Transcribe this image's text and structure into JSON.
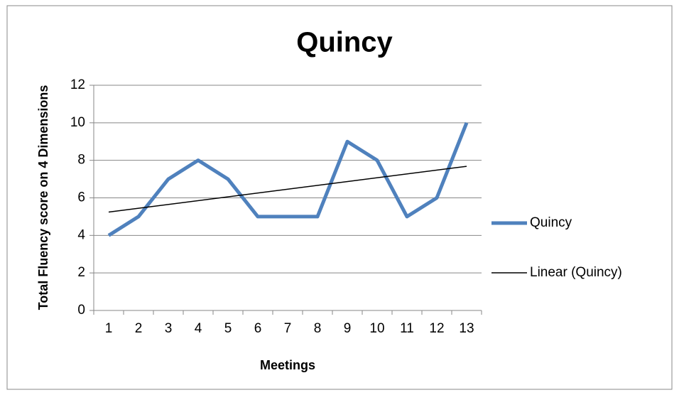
{
  "chart_data": {
    "type": "line",
    "title": "Quincy",
    "x_label": "Meetings",
    "y_label": "Total Fluency score on 4 Dimensions",
    "categories": [
      "1",
      "2",
      "3",
      "4",
      "5",
      "6",
      "7",
      "8",
      "9",
      "10",
      "11",
      "12",
      "13"
    ],
    "series": [
      {
        "name": "Quincy",
        "color": "#4f81bd",
        "values": [
          4,
          5,
          7,
          8,
          7,
          5,
          5,
          5,
          9,
          8,
          5,
          6,
          10
        ]
      },
      {
        "name": "Linear (Quincy)",
        "color": "#000000",
        "trendline": "linear",
        "of": 0
      }
    ],
    "ylim": [
      0,
      12
    ],
    "yticks": [
      0,
      2,
      4,
      6,
      8,
      10,
      12
    ],
    "grid": true,
    "legend": "right"
  }
}
